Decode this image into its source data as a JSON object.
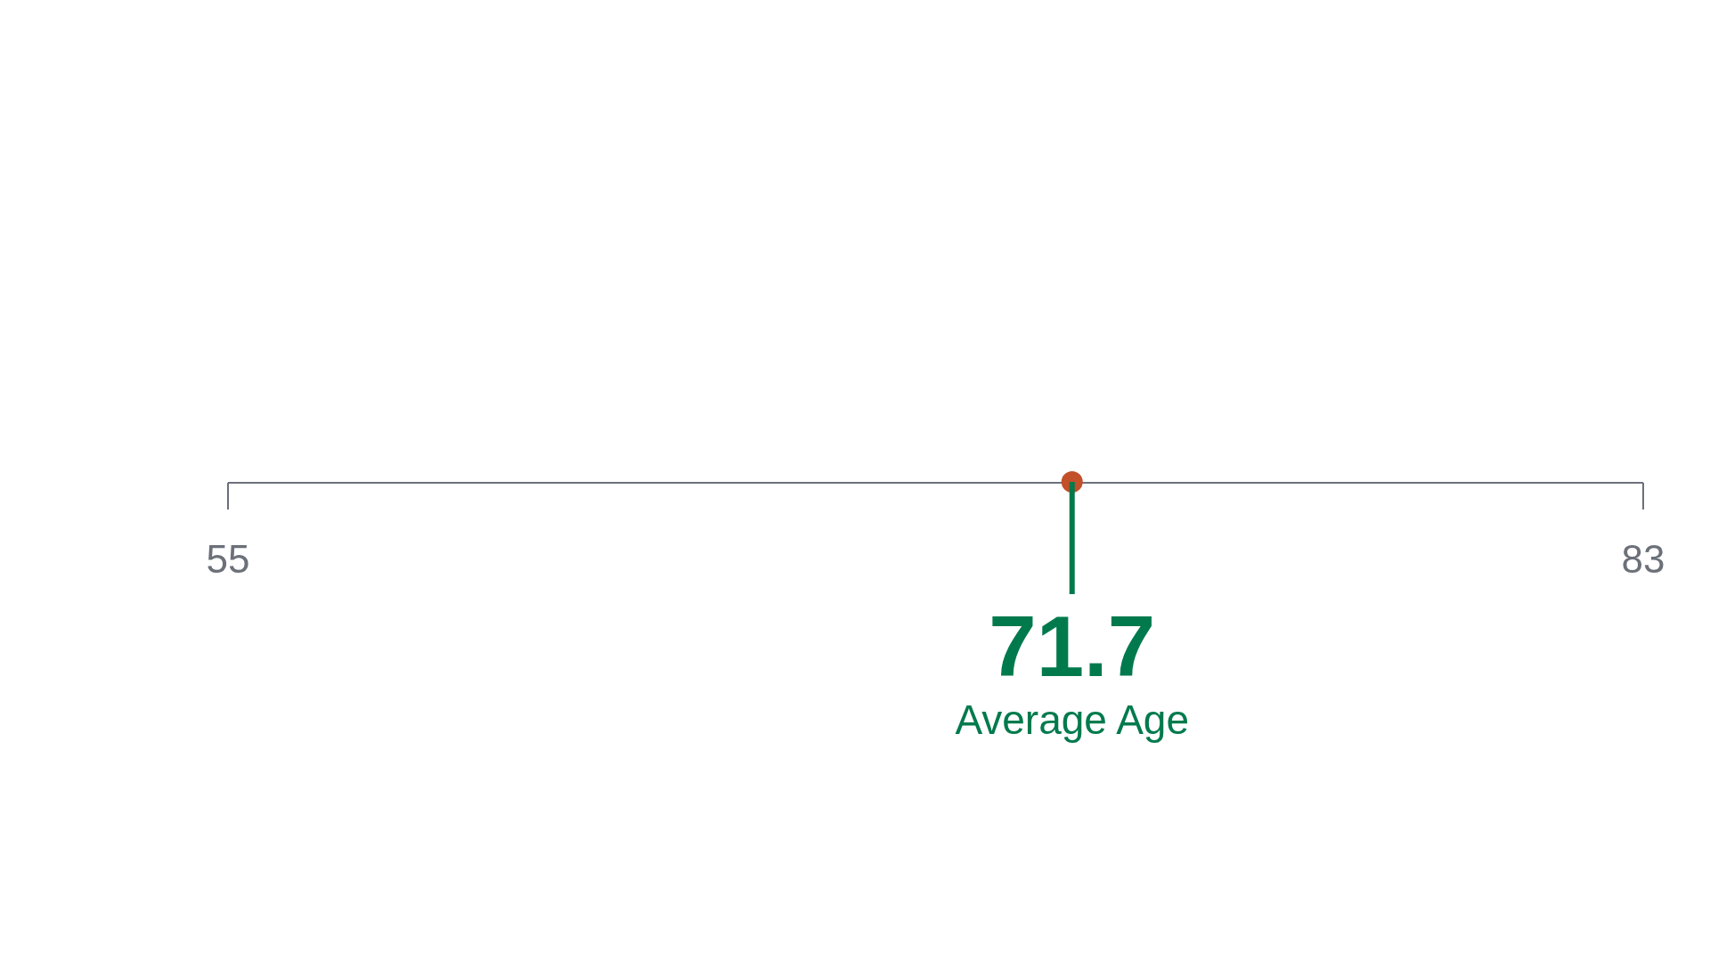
{
  "chart_data": {
    "type": "other",
    "values": [
      71.7
    ],
    "color": "#c2502a",
    "data_labels": true,
    "annotations": [
      "Average Age",
      "55",
      "83"
    ]
  }
}
